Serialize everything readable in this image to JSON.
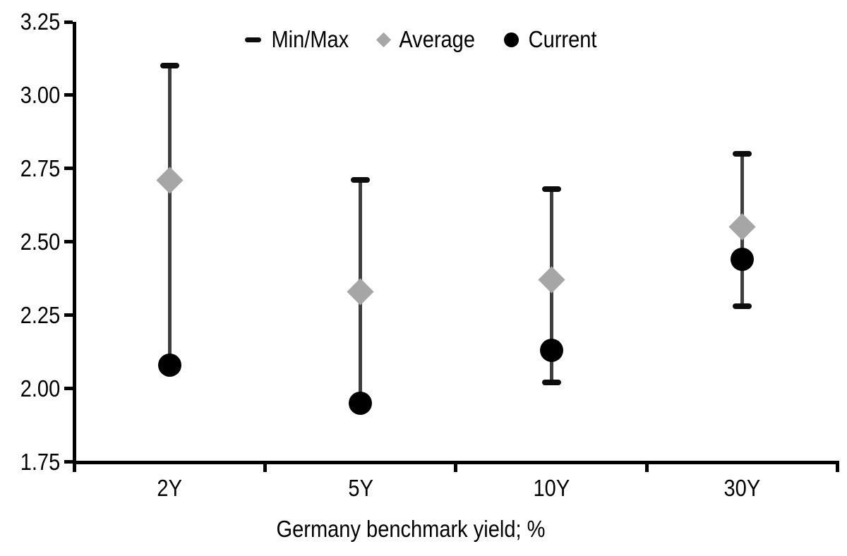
{
  "chart_data": {
    "type": "scatter",
    "subtype": "min-max-range-with-markers",
    "title": "",
    "xlabel": "Germany benchmark yield; %",
    "ylabel": "",
    "categories": [
      "2Y",
      "5Y",
      "10Y",
      "30Y"
    ],
    "y_axis": {
      "min": 1.75,
      "max": 3.25,
      "step": 0.25,
      "tick_labels": [
        "3.25",
        "3.00",
        "2.75",
        "2.50",
        "2.25",
        "2.00",
        "1.75"
      ]
    },
    "ylim": [
      1.75,
      3.25
    ],
    "grid": false,
    "series": [
      {
        "name": "Min/Max",
        "type": "range",
        "min": [
          2.08,
          1.95,
          2.02,
          2.28
        ],
        "max": [
          3.1,
          2.71,
          2.68,
          2.8
        ]
      },
      {
        "name": "Average",
        "type": "point",
        "marker": "diamond",
        "values": [
          2.71,
          2.33,
          2.37,
          2.55
        ]
      },
      {
        "name": "Current",
        "type": "point",
        "marker": "circle",
        "values": [
          2.08,
          1.95,
          2.13,
          2.44
        ]
      }
    ],
    "legend": {
      "position": "top-center",
      "items": [
        {
          "label": "Min/Max",
          "marker": "dash"
        },
        {
          "label": "Average",
          "marker": "diamond"
        },
        {
          "label": "Current",
          "marker": "circle"
        }
      ]
    },
    "colors": {
      "range_line": "#3F3F3F",
      "cap": "#0D0D0D",
      "average": "#A6A6A6",
      "current": "#000000",
      "axis": "#000000",
      "text": "#000000",
      "background": "#FFFFFF"
    }
  }
}
